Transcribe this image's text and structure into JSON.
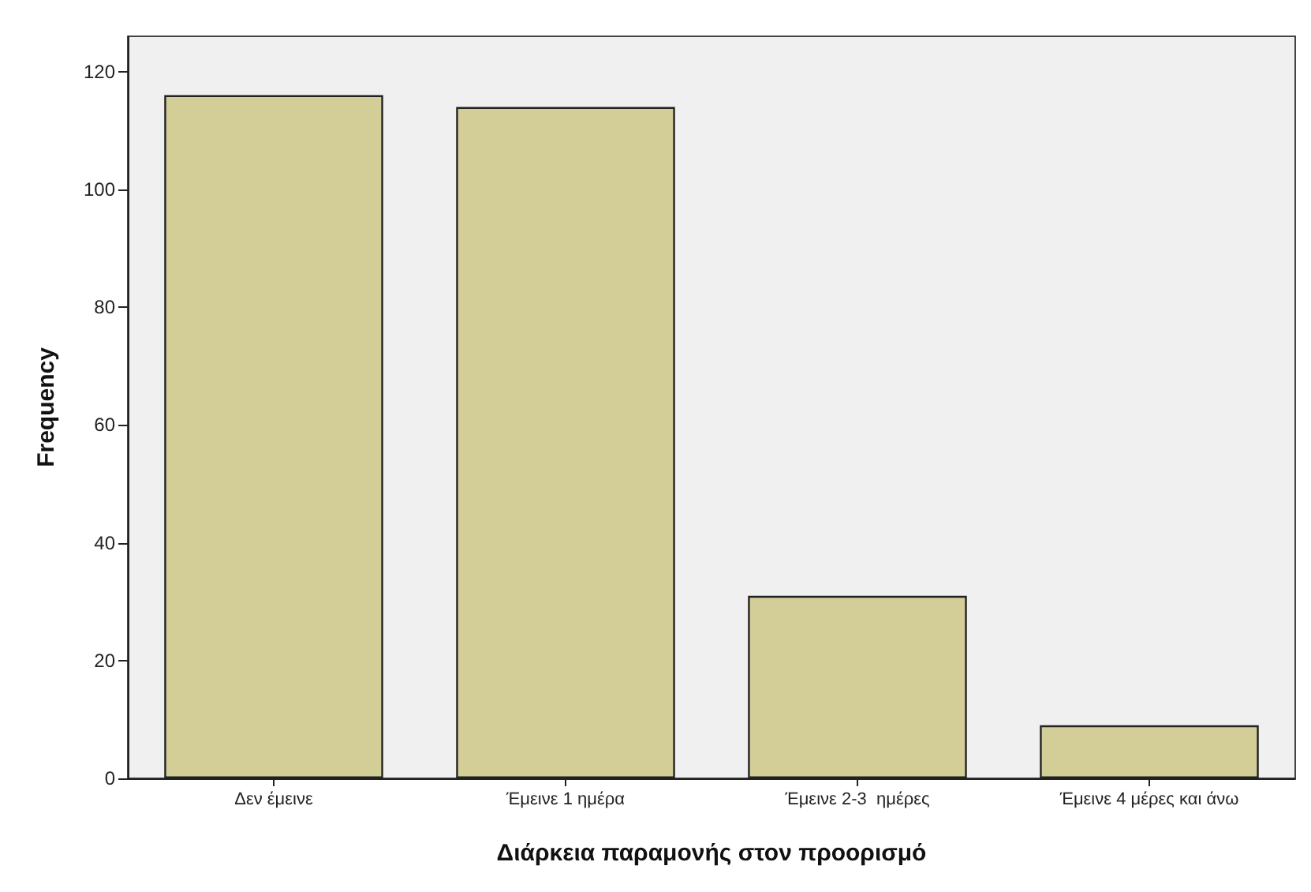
{
  "chart_data": {
    "type": "bar",
    "xlabel": "Διάρκεια παραμονής στον προορισμό",
    "ylabel": "Frequency",
    "categories": [
      "Δεν έμεινε",
      "Έμεινε 1 ημέρα",
      "Έμεινε 2-3  ημέρες",
      "Έμεινε 4 μέρες και άνω"
    ],
    "values": [
      116,
      114,
      31,
      9
    ],
    "color": "#d3ce97",
    "ylim": [
      0,
      126
    ],
    "yticks": [
      0,
      20,
      40,
      60,
      80,
      100,
      120
    ],
    "grid": false
  }
}
